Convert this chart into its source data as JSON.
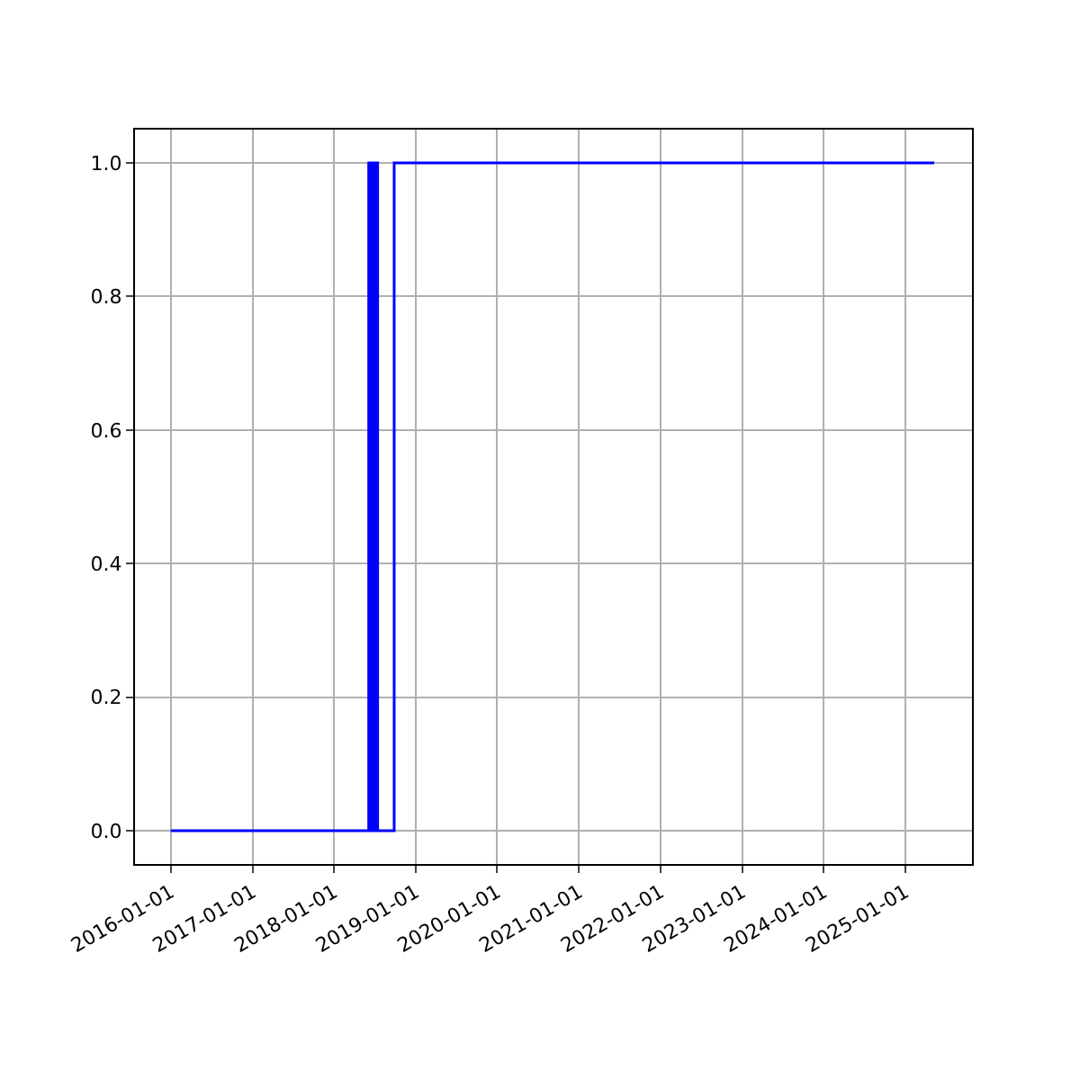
{
  "chart_data": {
    "type": "step",
    "x": [
      "2016-01-01",
      "2018-06-05",
      "2018-06-08",
      "2018-06-11",
      "2018-06-14",
      "2018-06-17",
      "2018-06-20",
      "2018-06-23",
      "2018-06-26",
      "2018-06-29",
      "2018-07-02",
      "2018-07-05",
      "2018-07-08",
      "2018-07-11",
      "2018-07-15",
      "2018-09-27",
      "2025-05-10"
    ],
    "series": [
      {
        "color": "#0000ff",
        "values": [
          0,
          1,
          0,
          1,
          0,
          1,
          0,
          1,
          0,
          1,
          0,
          1,
          0,
          1,
          0,
          1,
          1
        ]
      }
    ],
    "xlim": [
      "2015-07-25",
      "2025-10-26"
    ],
    "xticks": [
      "2016-01-01",
      "2017-01-01",
      "2018-01-01",
      "2019-01-01",
      "2020-01-01",
      "2021-01-01",
      "2022-01-01",
      "2023-01-01",
      "2024-01-01",
      "2025-01-01"
    ],
    "ylim": [
      -0.05,
      1.05
    ],
    "yticks": [
      {
        "value": 0,
        "label": "0.0"
      },
      {
        "value": 0.2,
        "label": "0.2"
      },
      {
        "value": 0.4,
        "label": "0.4"
      },
      {
        "value": 0.6,
        "label": "0.6"
      },
      {
        "value": 0.8,
        "label": "0.8"
      },
      {
        "value": 1,
        "label": "1.0"
      }
    ],
    "grid": true,
    "marker": "none",
    "line_style": "solid"
  }
}
